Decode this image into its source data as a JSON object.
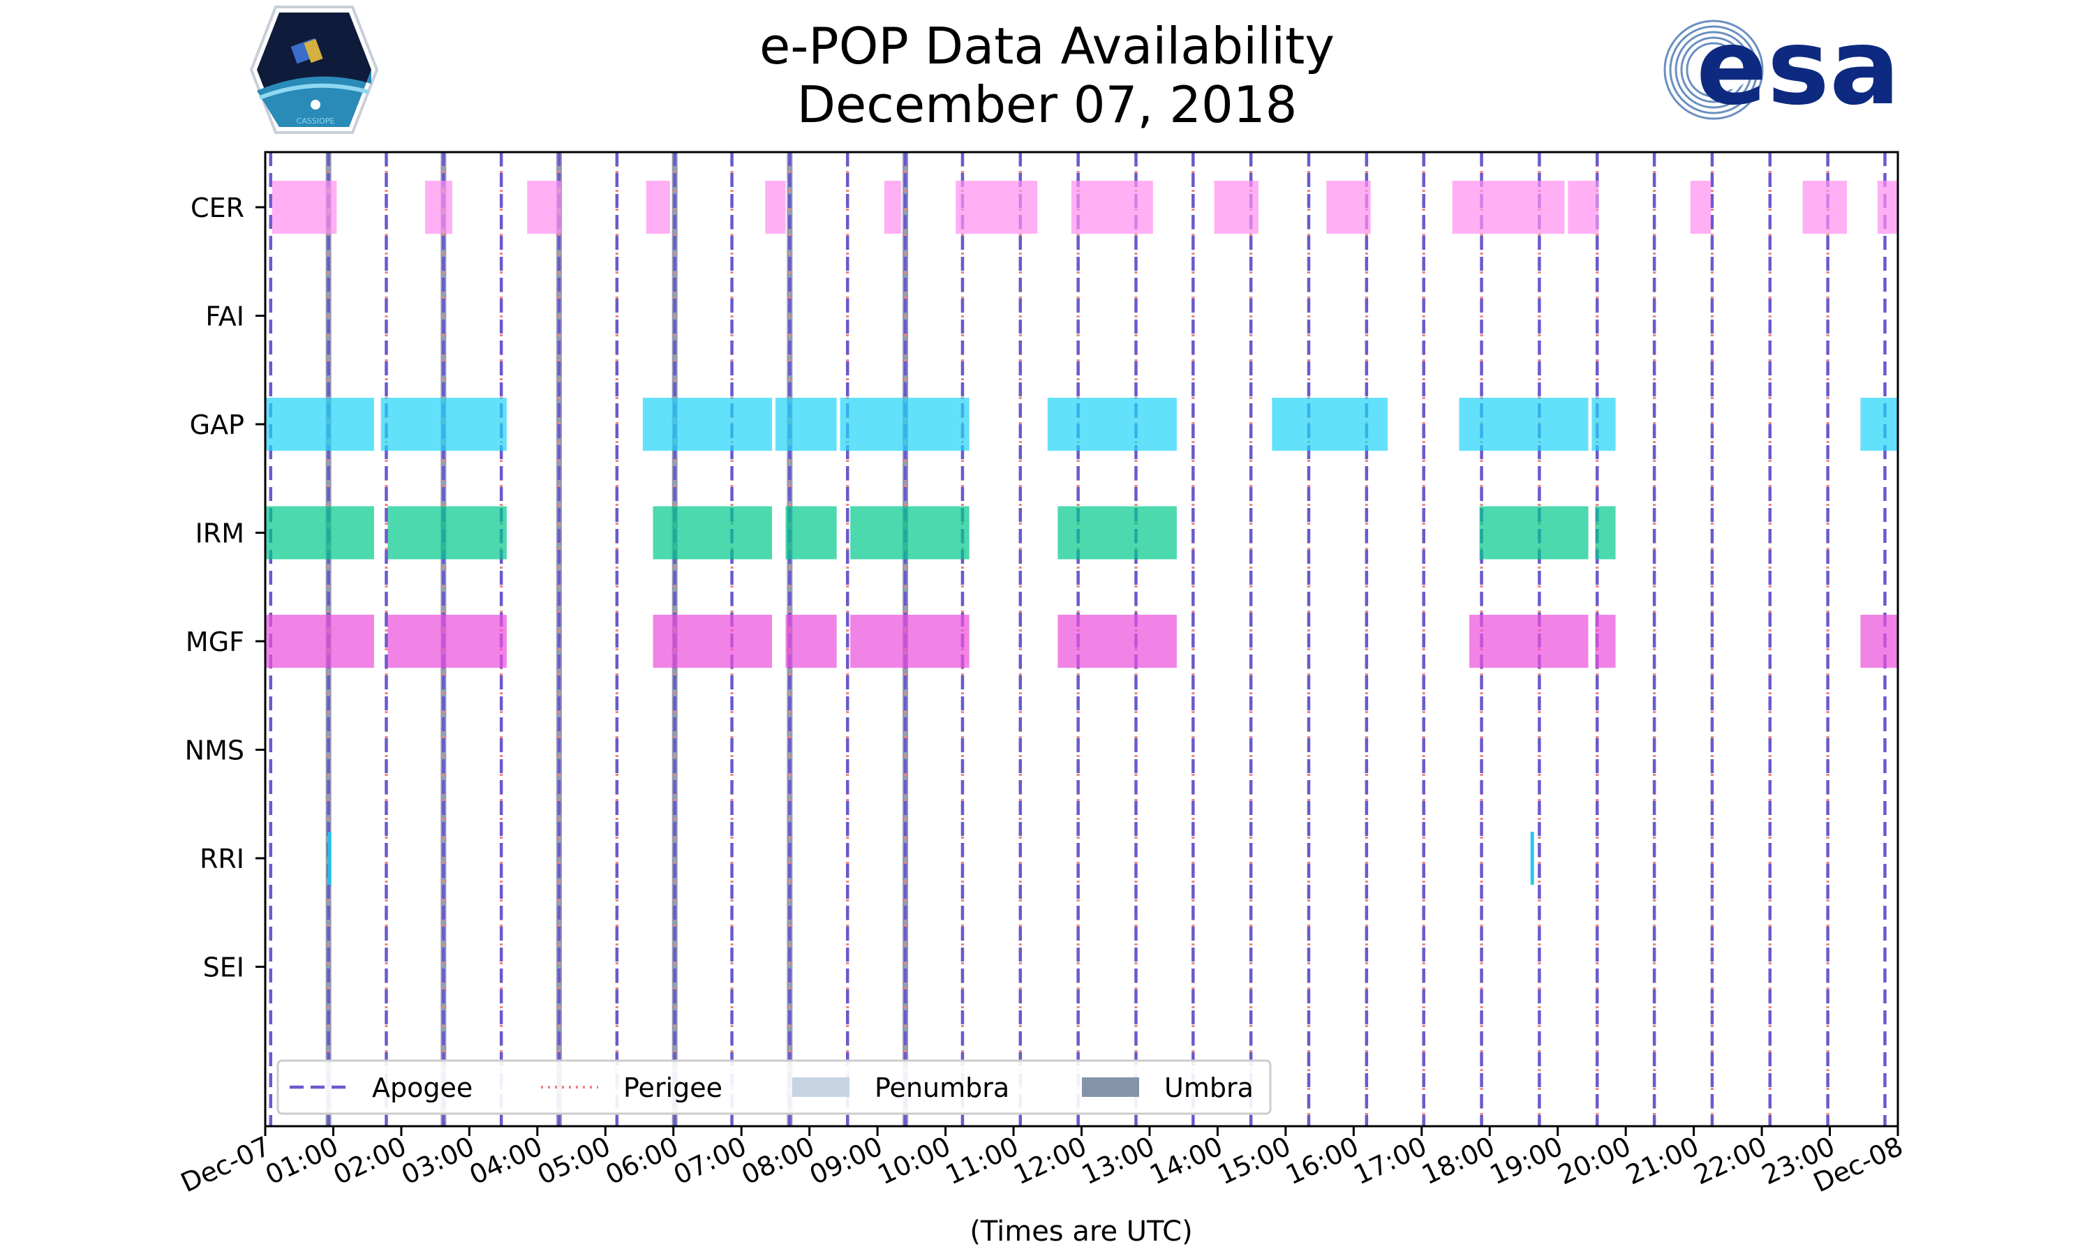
{
  "chart_data": {
    "type": "timeline",
    "title": "e-POP Data Availability",
    "subtitle": "December 07, 2018",
    "xlabel": "(Times are UTC)",
    "x_unit": "hours (UTC)",
    "xlim": [
      0,
      24
    ],
    "x_ticks": [
      {
        "hour": 0,
        "label": "Dec-07"
      },
      {
        "hour": 1,
        "label": "01:00"
      },
      {
        "hour": 2,
        "label": "02:00"
      },
      {
        "hour": 3,
        "label": "03:00"
      },
      {
        "hour": 4,
        "label": "04:00"
      },
      {
        "hour": 5,
        "label": "05:00"
      },
      {
        "hour": 6,
        "label": "06:00"
      },
      {
        "hour": 7,
        "label": "07:00"
      },
      {
        "hour": 8,
        "label": "08:00"
      },
      {
        "hour": 9,
        "label": "09:00"
      },
      {
        "hour": 10,
        "label": "10:00"
      },
      {
        "hour": 11,
        "label": "11:00"
      },
      {
        "hour": 12,
        "label": "12:00"
      },
      {
        "hour": 13,
        "label": "13:00"
      },
      {
        "hour": 14,
        "label": "14:00"
      },
      {
        "hour": 15,
        "label": "15:00"
      },
      {
        "hour": 16,
        "label": "16:00"
      },
      {
        "hour": 17,
        "label": "17:00"
      },
      {
        "hour": 18,
        "label": "18:00"
      },
      {
        "hour": 19,
        "label": "19:00"
      },
      {
        "hour": 20,
        "label": "20:00"
      },
      {
        "hour": 21,
        "label": "21:00"
      },
      {
        "hour": 22,
        "label": "22:00"
      },
      {
        "hour": 23,
        "label": "23:00"
      },
      {
        "hour": 24,
        "label": "Dec-08"
      }
    ],
    "instruments": [
      "CER",
      "FAI",
      "GAP",
      "IRM",
      "MGF",
      "NMS",
      "RRI",
      "SEI"
    ],
    "series": [
      {
        "name": "CER",
        "color": "#ff8ff0",
        "intervals": [
          [
            0.1,
            1.05
          ],
          [
            2.35,
            2.75
          ],
          [
            3.85,
            4.35
          ],
          [
            5.6,
            5.95
          ],
          [
            7.35,
            7.65
          ],
          [
            9.1,
            9.35
          ],
          [
            10.15,
            11.35
          ],
          [
            11.85,
            13.05
          ],
          [
            13.95,
            14.6
          ],
          [
            15.6,
            16.25
          ],
          [
            17.45,
            19.1
          ],
          [
            19.15,
            19.6
          ],
          [
            20.95,
            21.25
          ],
          [
            22.6,
            23.25
          ],
          [
            23.7,
            24.0
          ]
        ]
      },
      {
        "name": "FAI",
        "color": "#ff8ff0",
        "intervals": []
      },
      {
        "name": "GAP",
        "color": "#22d4f8",
        "intervals": [
          [
            0.0,
            1.6
          ],
          [
            1.7,
            3.55
          ],
          [
            5.55,
            7.45
          ],
          [
            7.5,
            8.4
          ],
          [
            8.45,
            10.35
          ],
          [
            11.5,
            13.4
          ],
          [
            14.8,
            16.5
          ],
          [
            17.55,
            19.45
          ],
          [
            19.5,
            19.85
          ],
          [
            23.45,
            24.0
          ]
        ]
      },
      {
        "name": "IRM",
        "color": "#00c98c",
        "intervals": [
          [
            0.0,
            1.6
          ],
          [
            1.8,
            3.55
          ],
          [
            5.7,
            7.45
          ],
          [
            7.65,
            8.4
          ],
          [
            8.6,
            10.35
          ],
          [
            11.65,
            13.4
          ],
          [
            17.85,
            19.45
          ],
          [
            19.55,
            19.85
          ]
        ]
      },
      {
        "name": "MGF",
        "color": "#ec4fdc",
        "intervals": [
          [
            0.0,
            1.6
          ],
          [
            1.8,
            3.55
          ],
          [
            5.7,
            7.45
          ],
          [
            7.65,
            8.4
          ],
          [
            8.6,
            10.35
          ],
          [
            11.65,
            13.4
          ],
          [
            17.7,
            19.45
          ],
          [
            19.55,
            19.85
          ],
          [
            23.45,
            24.0
          ]
        ]
      },
      {
        "name": "NMS",
        "color": "#ec4fdc",
        "intervals": []
      },
      {
        "name": "RRI",
        "color": "#22c4e8",
        "intervals": [
          [
            0.92,
            0.97
          ],
          [
            18.6,
            18.65
          ]
        ]
      },
      {
        "name": "SEI",
        "color": "#22c4e8",
        "intervals": []
      }
    ],
    "apogee_times": [
      0.08,
      0.93,
      1.78,
      2.62,
      3.47,
      4.32,
      5.17,
      6.02,
      6.86,
      7.71,
      8.56,
      9.41,
      10.25,
      11.1,
      11.95,
      12.8,
      13.64,
      14.49,
      15.34,
      16.19,
      17.03,
      17.88,
      18.73,
      19.58,
      20.42,
      21.27,
      22.12,
      22.97,
      23.81
    ],
    "perigee_times": [
      0.93,
      1.78,
      2.62,
      3.47,
      4.32,
      5.17,
      6.02,
      6.86,
      7.71,
      8.56,
      9.41,
      10.25,
      11.1,
      11.95,
      12.8,
      13.64,
      14.49,
      15.34,
      16.19,
      17.03,
      17.88,
      18.73,
      19.58,
      20.42,
      21.27,
      22.12,
      22.97
    ],
    "umbra_times": [
      0.93,
      2.62,
      4.32,
      6.02,
      7.71,
      9.41
    ],
    "legend": {
      "placement": "lower-left",
      "items": [
        {
          "label": "Apogee",
          "style": "dashed",
          "color": "#6a5acd"
        },
        {
          "label": "Perigee",
          "style": "dotted",
          "color": "#f08080"
        },
        {
          "label": "Penumbra",
          "style": "patch",
          "color": "#c6d4e4"
        },
        {
          "label": "Umbra",
          "style": "patch",
          "color": "#8494a8"
        }
      ]
    }
  },
  "logos": {
    "left_caption": "CASSIOPE",
    "right_text": "esa"
  },
  "colors": {
    "apogee": "#6a5acd",
    "perigee": "#f08080",
    "umbra": "#8494a8",
    "penumbra": "#c6d4e4"
  }
}
